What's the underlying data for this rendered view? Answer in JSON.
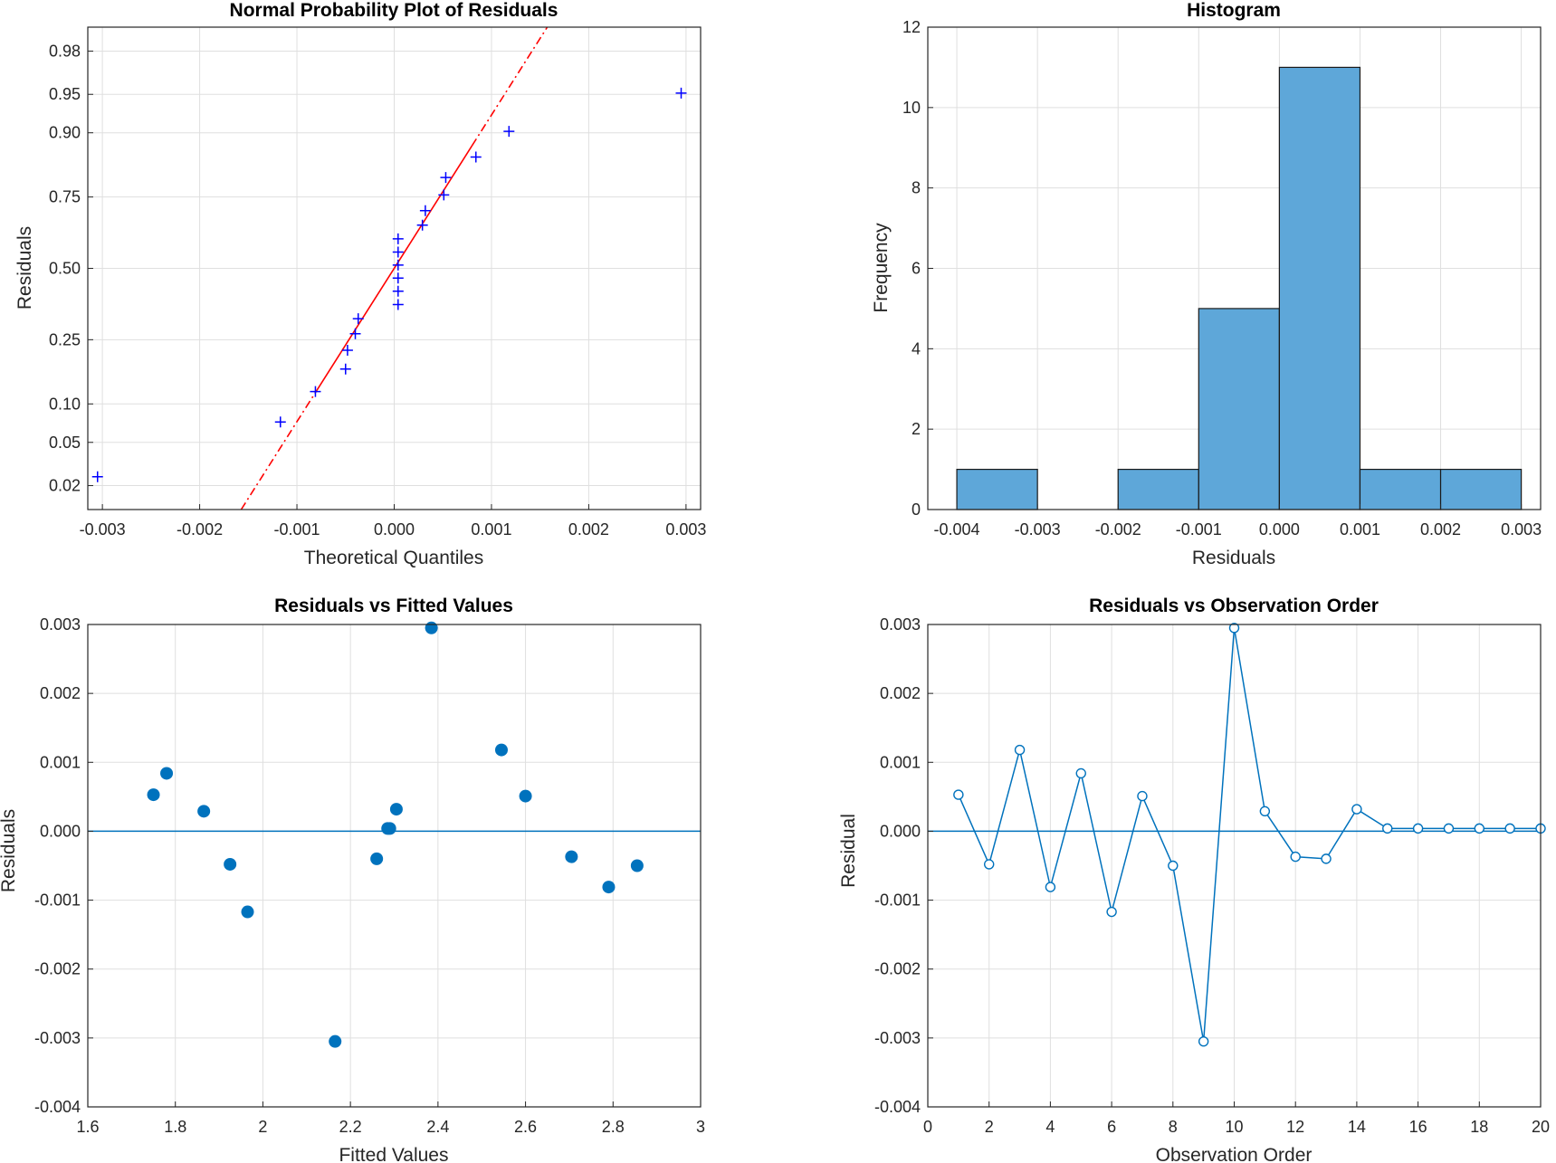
{
  "chart_data": [
    {
      "id": "normprob",
      "type": "scatter",
      "title": "Normal Probability Plot of Residuals",
      "xlabel": "Theoretical Quantiles",
      "ylabel": "Residuals",
      "xlim": [
        -0.00315,
        0.00315
      ],
      "x_ticks": [
        "-0.003",
        "-0.002",
        "-0.001",
        "0.000",
        "0.001",
        "0.002",
        "0.003"
      ],
      "y_ticks": [
        "0.02",
        "0.05",
        "0.10",
        "0.25",
        "0.50",
        "0.75",
        "0.90",
        "0.95",
        "0.98"
      ],
      "series": [
        {
          "name": "residuals",
          "marker": "+",
          "color": "#0000ff",
          "points": [
            {
              "x": -0.00305,
              "p": 0.0244
            },
            {
              "x": -0.00117,
              "p": 0.0732
            },
            {
              "x": -0.00081,
              "p": 0.122
            },
            {
              "x": -0.0005,
              "p": 0.1707
            },
            {
              "x": -0.00048,
              "p": 0.2195
            },
            {
              "x": -0.0004,
              "p": 0.2683
            },
            {
              "x": -0.00037,
              "p": 0.3171
            },
            {
              "x": 4e-05,
              "p": 0.3659
            },
            {
              "x": 4e-05,
              "p": 0.4146
            },
            {
              "x": 4e-05,
              "p": 0.4634
            },
            {
              "x": 4e-05,
              "p": 0.5122
            },
            {
              "x": 4e-05,
              "p": 0.561
            },
            {
              "x": 4e-05,
              "p": 0.6098
            },
            {
              "x": 0.00029,
              "p": 0.6585
            },
            {
              "x": 0.00032,
              "p": 0.7073
            },
            {
              "x": 0.00051,
              "p": 0.7561
            },
            {
              "x": 0.00053,
              "p": 0.8049
            },
            {
              "x": 0.00084,
              "p": 0.8537
            },
            {
              "x": 0.00118,
              "p": 0.9024
            },
            {
              "x": 0.00295,
              "p": 0.9512
            }
          ]
        }
      ],
      "reference_line": {
        "color": "#ff0000",
        "mean": 0.0,
        "sd": 0.00069,
        "solid_range": [
          -0.0008,
          0.0008
        ]
      }
    },
    {
      "id": "hist",
      "type": "bar",
      "title": "Histogram",
      "xlabel": "Residuals",
      "ylabel": "Frequency",
      "xlim": [
        -0.00436,
        0.00324
      ],
      "ylim": [
        0,
        12
      ],
      "x_ticks": [
        "-0.004",
        "-0.003",
        "-0.002",
        "-0.001",
        "0.000",
        "0.001",
        "0.002",
        "0.003"
      ],
      "y_ticks": [
        "0",
        "2",
        "4",
        "6",
        "8",
        "10",
        "12"
      ],
      "bin_edges": [
        -0.004,
        -0.003,
        -0.002,
        -0.001,
        0.0,
        0.001,
        0.002,
        0.003
      ],
      "values": [
        1,
        0,
        1,
        5,
        11,
        1,
        1
      ],
      "color": "#5ea7d9"
    },
    {
      "id": "fitted",
      "type": "scatter",
      "title": "Residuals vs Fitted Values",
      "xlabel": "Fitted Values",
      "ylabel": "Residuals",
      "xlim": [
        1.6,
        3.0
      ],
      "ylim": [
        -0.004,
        0.003
      ],
      "x_ticks": [
        "1.6",
        "1.8",
        "2",
        "2.2",
        "2.4",
        "2.6",
        "2.8",
        "3"
      ],
      "y_ticks": [
        "-0.004",
        "-0.003",
        "-0.002",
        "-0.001",
        "0.000",
        "0.001",
        "0.002",
        "0.003"
      ],
      "color": "#0072bd",
      "points": [
        {
          "x": 1.75,
          "y": 0.00053
        },
        {
          "x": 1.78,
          "y": 0.00084
        },
        {
          "x": 1.865,
          "y": 0.00029
        },
        {
          "x": 1.925,
          "y": -0.00048
        },
        {
          "x": 1.965,
          "y": -0.00117
        },
        {
          "x": 2.165,
          "y": -0.00305
        },
        {
          "x": 2.26,
          "y": -0.0004
        },
        {
          "x": 2.285,
          "y": 4e-05
        },
        {
          "x": 2.29,
          "y": 4e-05
        },
        {
          "x": 2.305,
          "y": 0.00032
        },
        {
          "x": 2.385,
          "y": 0.00295
        },
        {
          "x": 2.545,
          "y": 0.00118
        },
        {
          "x": 2.6,
          "y": 0.00051
        },
        {
          "x": 2.705,
          "y": -0.00037
        },
        {
          "x": 2.79,
          "y": -0.00081
        },
        {
          "x": 2.855,
          "y": -0.0005
        }
      ],
      "zero_line": 0
    },
    {
      "id": "order",
      "type": "line",
      "title": "Residuals vs Observation Order",
      "xlabel": "Observation Order",
      "ylabel": "Residual",
      "xlim": [
        0,
        20
      ],
      "ylim": [
        -0.004,
        0.003
      ],
      "x_ticks": [
        "0",
        "2",
        "4",
        "6",
        "8",
        "10",
        "12",
        "14",
        "16",
        "18",
        "20"
      ],
      "y_ticks": [
        "-0.004",
        "-0.003",
        "-0.002",
        "-0.001",
        "0.000",
        "0.001",
        "0.002",
        "0.003"
      ],
      "color": "#0072bd",
      "x": [
        1,
        2,
        3,
        4,
        5,
        6,
        7,
        8,
        9,
        10,
        11,
        12,
        13,
        14,
        15,
        16,
        17,
        18,
        19,
        20
      ],
      "y": [
        0.00053,
        -0.00048,
        0.00118,
        -0.00081,
        0.00084,
        -0.00117,
        0.00051,
        -0.0005,
        -0.00305,
        0.00295,
        0.00029,
        -0.00037,
        -0.0004,
        0.00032,
        4e-05,
        4e-05,
        4e-05,
        4e-05,
        4e-05,
        4e-05
      ],
      "zero_line": 0
    }
  ]
}
